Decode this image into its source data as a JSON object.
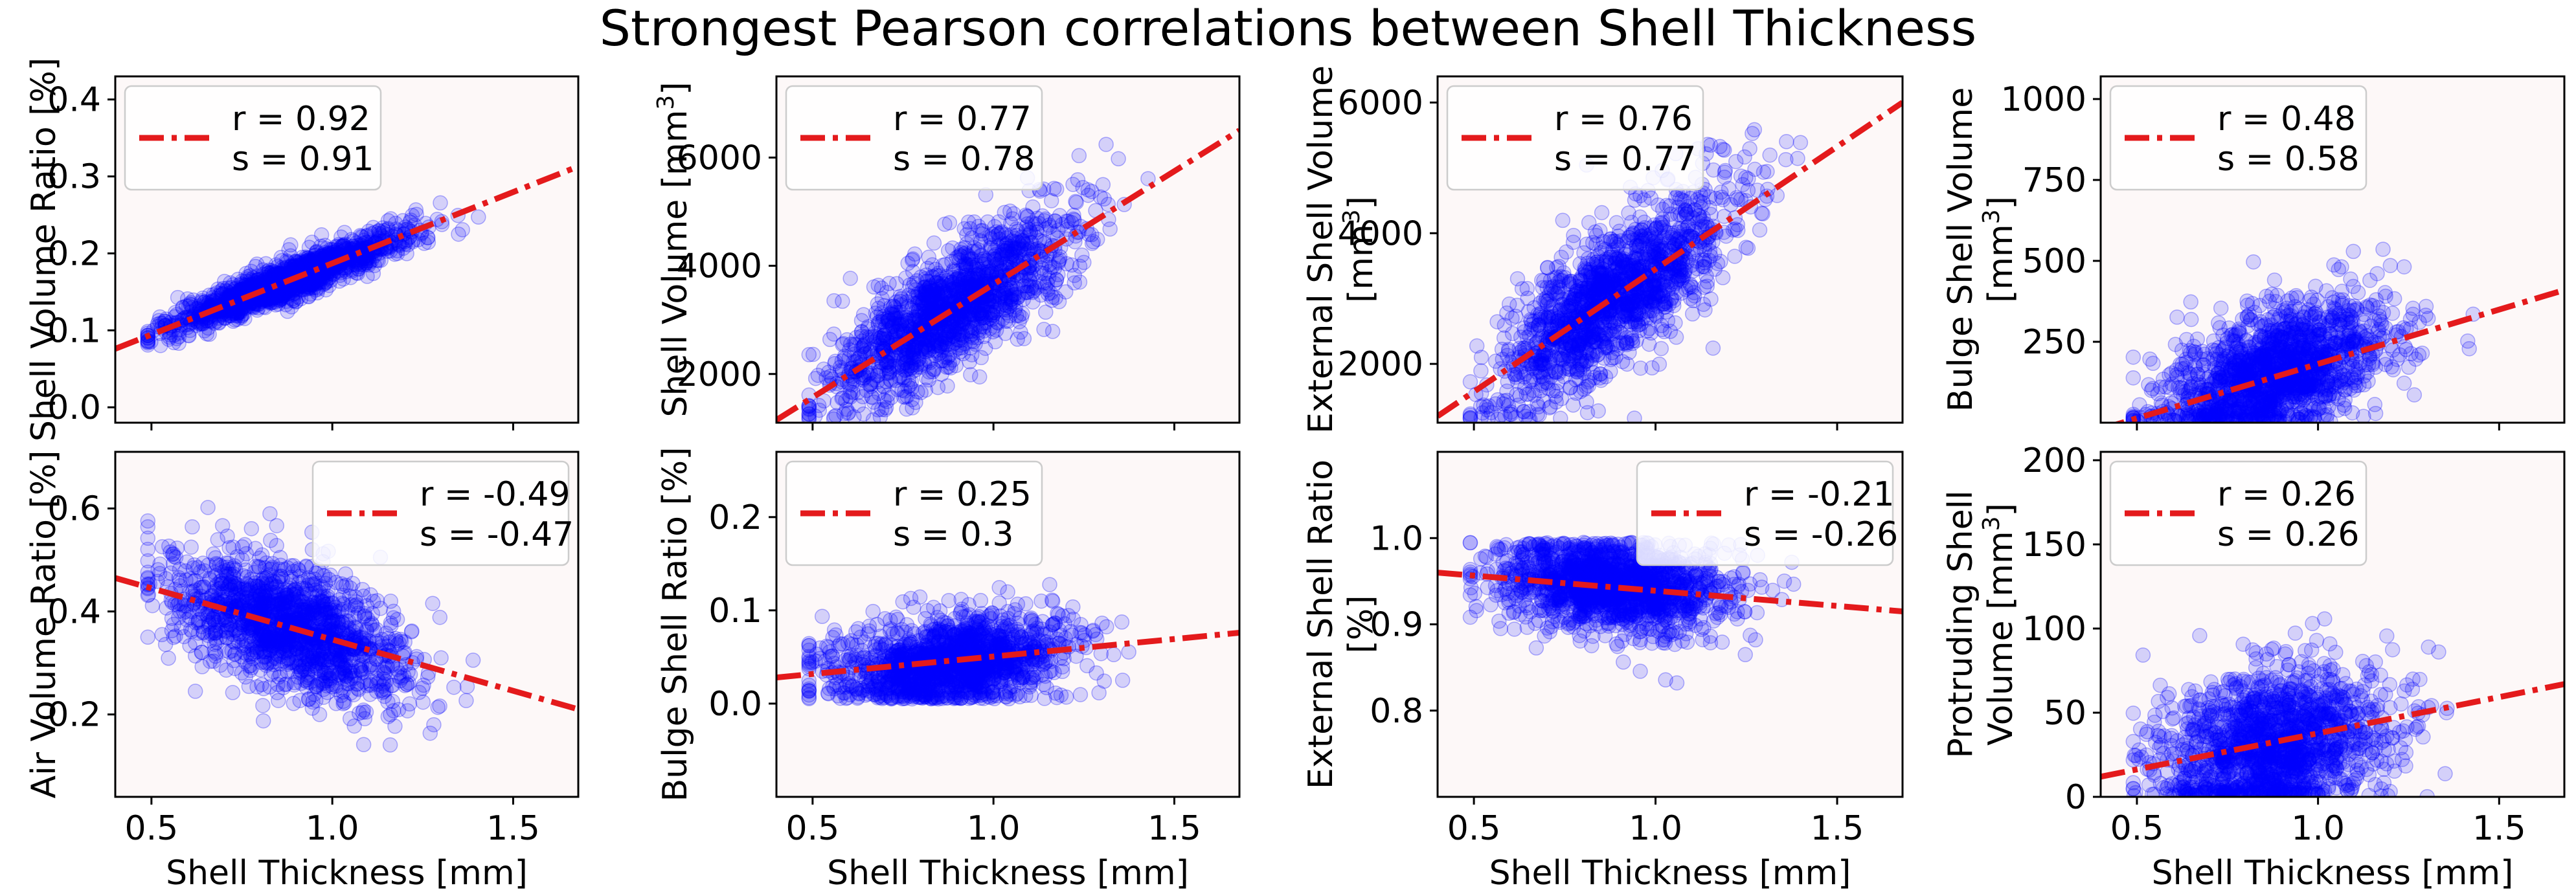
{
  "figure_title": "Strongest Pearson correlations between Shell Thickness",
  "colors": {
    "points": "#0000ff",
    "fit_line": "#e41a1c",
    "axes_bg": "#fdf8f8"
  },
  "chart_data": [
    {
      "type": "scatter",
      "xlabel": "",
      "ylabel": "Shell Volume Ratio [%]",
      "xlim": [
        0.4,
        1.68
      ],
      "ylim": [
        -0.02,
        0.43
      ],
      "xticks": [],
      "yticks": [
        0.0,
        0.1,
        0.2,
        0.3,
        0.4
      ],
      "ytick_labels": [
        "0.0",
        "0.1",
        "0.2",
        "0.3",
        "0.4"
      ],
      "legend": {
        "location": "upper-left",
        "entries": [
          "r = 0.92",
          "s = 0.91"
        ]
      },
      "fit_line": [
        [
          0.4,
          0.076
        ],
        [
          1.68,
          0.313
        ]
      ],
      "cloud": {
        "n": 1500,
        "x_mean": 0.88,
        "x_sd": 0.16,
        "y_mean": 0.165,
        "y_sd": 0.032,
        "corr": 0.92,
        "y_min": 0.08
      }
    },
    {
      "type": "scatter",
      "xlabel": "",
      "ylabel": "Shell Volume [mm³]",
      "xlim": [
        0.4,
        1.68
      ],
      "ylim": [
        1100,
        7500
      ],
      "xticks": [],
      "yticks": [
        2000,
        4000,
        6000
      ],
      "ytick_labels": [
        "2000",
        "4000",
        "6000"
      ],
      "legend": {
        "location": "upper-left",
        "entries": [
          "r = 0.77",
          "s = 0.78"
        ]
      },
      "fit_line": [
        [
          0.4,
          1150
        ],
        [
          1.68,
          6500
        ]
      ],
      "cloud": {
        "n": 1500,
        "x_mean": 0.88,
        "x_sd": 0.16,
        "y_mean": 3200,
        "y_sd": 850,
        "corr": 0.77,
        "y_min": 1150
      }
    },
    {
      "type": "scatter",
      "xlabel": "",
      "ylabel": "External Shell Volume [mm³]",
      "xlim": [
        0.4,
        1.68
      ],
      "ylim": [
        1100,
        6400
      ],
      "xticks": [],
      "yticks": [
        2000,
        4000,
        6000
      ],
      "ytick_labels": [
        "2000",
        "4000",
        "6000"
      ],
      "legend": {
        "location": "upper-left",
        "entries": [
          "r = 0.76",
          "s = 0.77"
        ]
      },
      "fit_line": [
        [
          0.4,
          1200
        ],
        [
          1.68,
          6000
        ]
      ],
      "cloud": {
        "n": 1500,
        "x_mean": 0.88,
        "x_sd": 0.16,
        "y_mean": 3000,
        "y_sd": 800,
        "corr": 0.76,
        "y_min": 1150
      }
    },
    {
      "type": "scatter",
      "xlabel": "",
      "ylabel": "Bulge Shell Volume [mm³]",
      "xlim": [
        0.4,
        1.68
      ],
      "ylim": [
        0,
        1070
      ],
      "xticks": [],
      "yticks": [
        250,
        500,
        750,
        1000
      ],
      "ytick_labels": [
        "250",
        "500",
        "750",
        "1000"
      ],
      "legend": {
        "location": "upper-left",
        "entries": [
          "r = 0.48",
          "s = 0.58"
        ]
      },
      "fit_line": [
        [
          0.4,
          -20
        ],
        [
          1.68,
          410
        ]
      ],
      "cloud": {
        "n": 1500,
        "x_mean": 0.88,
        "x_sd": 0.16,
        "y_mean": 150,
        "y_sd": 110,
        "corr": 0.48,
        "y_min": 2
      }
    },
    {
      "type": "scatter",
      "xlabel": "Shell Thickness [mm]",
      "ylabel": "Air Volume Ratio [%]",
      "xlim": [
        0.4,
        1.68
      ],
      "ylim": [
        0.04,
        0.71
      ],
      "xticks": [
        0.5,
        1.0,
        1.5
      ],
      "xtick_labels": [
        "0.5",
        "1.0",
        "1.5"
      ],
      "yticks": [
        0.2,
        0.4,
        0.6
      ],
      "ytick_labels": [
        "0.2",
        "0.4",
        "0.6"
      ],
      "legend": {
        "location": "upper-right",
        "entries": [
          "r = -0.49",
          "s = -0.47"
        ]
      },
      "fit_line": [
        [
          0.4,
          0.465
        ],
        [
          1.68,
          0.21
        ]
      ],
      "cloud": {
        "n": 1500,
        "x_mean": 0.88,
        "x_sd": 0.16,
        "y_mean": 0.37,
        "y_sd": 0.07,
        "corr": -0.49,
        "y_min": 0.12
      }
    },
    {
      "type": "scatter",
      "xlabel": "Shell Thickness [mm]",
      "ylabel": "Bulge Shell Ratio [%]",
      "xlim": [
        0.4,
        1.68
      ],
      "ylim": [
        -0.1,
        0.27
      ],
      "xticks": [
        0.5,
        1.0,
        1.5
      ],
      "xtick_labels": [
        "0.5",
        "1.0",
        "1.5"
      ],
      "yticks": [
        0.0,
        0.1,
        0.2
      ],
      "ytick_labels": [
        "0.0",
        "0.1",
        "0.2"
      ],
      "legend": {
        "location": "upper-left",
        "entries": [
          "r = 0.25",
          "s = 0.3"
        ]
      },
      "fit_line": [
        [
          0.4,
          0.028
        ],
        [
          1.68,
          0.076
        ]
      ],
      "cloud": {
        "n": 1500,
        "x_mean": 0.88,
        "x_sd": 0.16,
        "y_mean": 0.045,
        "y_sd": 0.025,
        "corr": 0.25,
        "y_min": 0.005
      }
    },
    {
      "type": "scatter",
      "xlabel": "Shell Thickness [mm]",
      "ylabel": "External Shell Ratio [%]",
      "xlim": [
        0.4,
        1.68
      ],
      "ylim": [
        0.7,
        1.1
      ],
      "xticks": [
        0.5,
        1.0,
        1.5
      ],
      "xtick_labels": [
        "0.5",
        "1.0",
        "1.5"
      ],
      "yticks": [
        0.8,
        0.9,
        1.0
      ],
      "ytick_labels": [
        "0.8",
        "0.9",
        "1.0"
      ],
      "legend": {
        "location": "upper-right",
        "entries": [
          "r = -0.21",
          "s = -0.26"
        ]
      },
      "fit_line": [
        [
          0.4,
          0.96
        ],
        [
          1.68,
          0.915
        ]
      ],
      "cloud": {
        "n": 1500,
        "x_mean": 0.88,
        "x_sd": 0.16,
        "y_mean": 0.945,
        "y_sd": 0.028,
        "corr": -0.21,
        "y_max": 0.995
      }
    },
    {
      "type": "scatter",
      "xlabel": "Shell Thickness [mm]",
      "ylabel": "Protruding Shell Volume [mm³]",
      "xlim": [
        0.4,
        1.68
      ],
      "ylim": [
        0,
        205
      ],
      "xticks": [
        0.5,
        1.0,
        1.5
      ],
      "xtick_labels": [
        "0.5",
        "1.0",
        "1.5"
      ],
      "yticks": [
        0,
        50,
        100,
        150,
        200
      ],
      "ytick_labels": [
        "0",
        "50",
        "100",
        "150",
        "200"
      ],
      "legend": {
        "location": "upper-left",
        "entries": [
          "r = 0.26",
          "s = 0.26"
        ]
      },
      "fit_line": [
        [
          0.4,
          12
        ],
        [
          1.68,
          67
        ]
      ],
      "cloud": {
        "n": 1500,
        "x_mean": 0.88,
        "x_sd": 0.16,
        "y_mean": 30,
        "y_sd": 24,
        "corr": 0.26,
        "y_min": 0
      }
    }
  ]
}
